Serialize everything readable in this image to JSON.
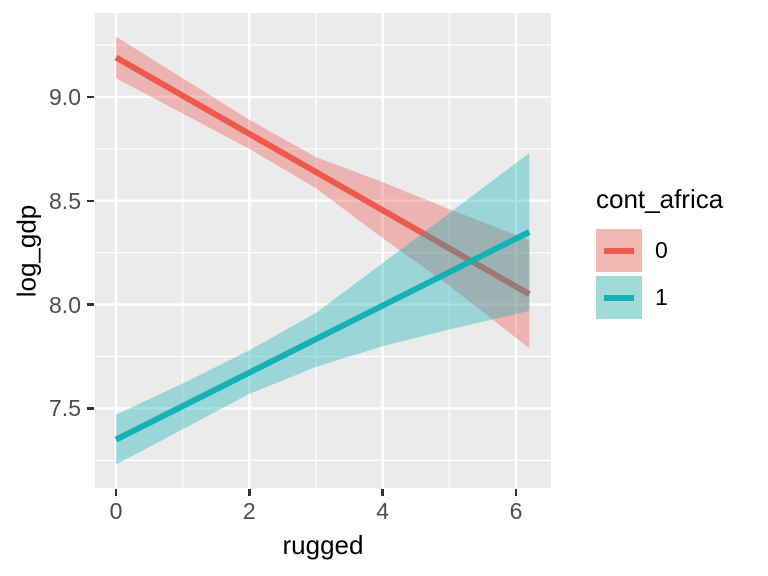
{
  "figure": {
    "background": "#ffffff",
    "panel_background": "#EBEBEB",
    "grid_color": "#FFFFFF",
    "tick_color": "#333333",
    "axis_text_color": "#4D4D4D"
  },
  "chart_data": {
    "type": "line",
    "title": "",
    "xlabel": "rugged",
    "ylabel": "log_gdp",
    "xlim": [
      -0.315,
      6.525
    ],
    "ylim": [
      7.117,
      9.404
    ],
    "grid": true,
    "legend_position": "right",
    "x_ticks": {
      "major": [
        0,
        2,
        4,
        6
      ],
      "minor": [
        1,
        3,
        5
      ]
    },
    "y_ticks": {
      "major": [
        7.5,
        8.0,
        8.5,
        9.0
      ],
      "minor": [
        7.25,
        7.75,
        8.25,
        8.75,
        9.25
      ]
    },
    "x_tick_labels": [
      "0",
      "2",
      "4",
      "6"
    ],
    "y_tick_labels": [
      "7.5",
      "8.0",
      "8.5",
      "9.0"
    ],
    "legend": {
      "title": "cont_africa"
    },
    "ribbon_opacity": 0.37,
    "series": [
      {
        "name": "0",
        "line_color": "#EF584D",
        "swatch_fill": "#F2B8B3",
        "line": {
          "x": [
            0,
            6.2
          ],
          "y": [
            9.19,
            8.05
          ]
        },
        "ribbon": {
          "x": [
            0,
            1,
            2,
            3,
            4,
            5,
            6.2
          ],
          "upper": [
            9.29,
            9.09,
            8.89,
            8.71,
            8.59,
            8.46,
            8.31
          ],
          "lower": [
            9.09,
            8.92,
            8.75,
            8.56,
            8.32,
            8.09,
            7.79
          ]
        }
      },
      {
        "name": "1",
        "line_color": "#14B1B5",
        "swatch_fill": "#A0DBD9",
        "line": {
          "x": [
            0,
            6.2
          ],
          "y": [
            7.35,
            8.35
          ]
        },
        "ribbon": {
          "x": [
            0,
            1,
            2,
            3,
            4,
            5,
            6.2
          ],
          "upper": [
            7.47,
            7.62,
            7.78,
            7.96,
            8.2,
            8.44,
            8.73
          ],
          "lower": [
            7.23,
            7.4,
            7.57,
            7.7,
            7.8,
            7.88,
            7.97
          ]
        }
      }
    ]
  }
}
